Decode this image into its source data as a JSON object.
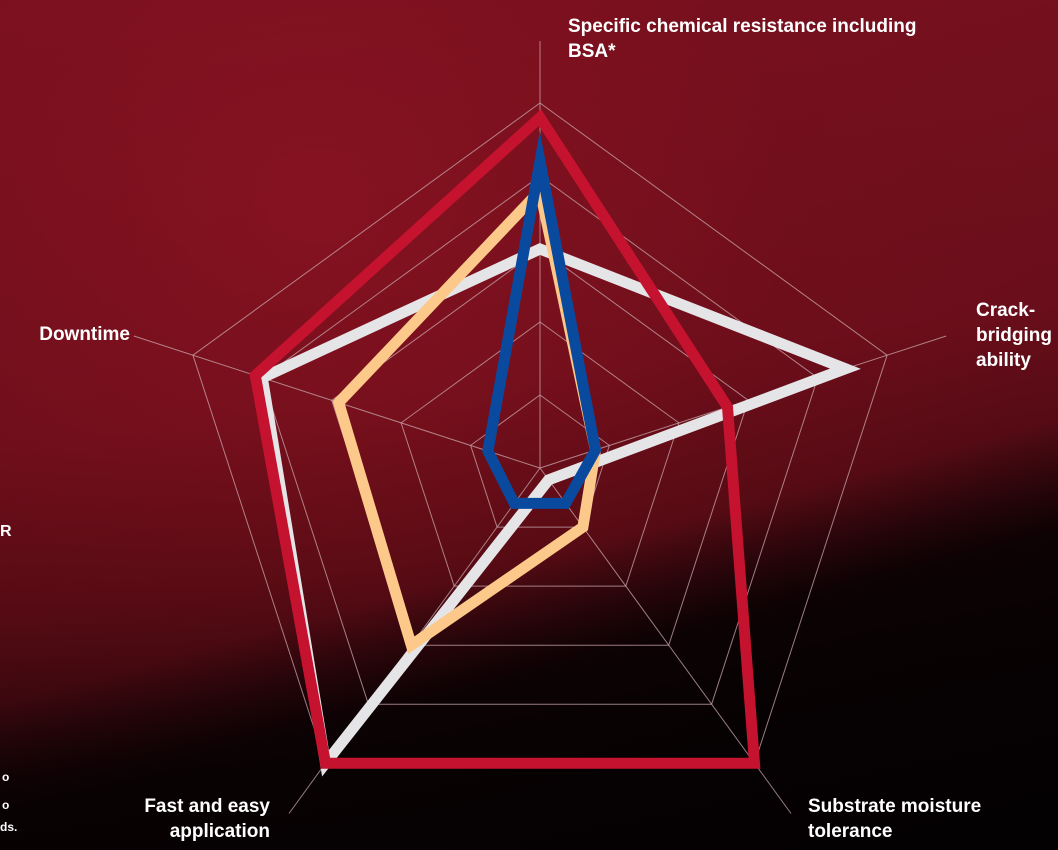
{
  "chart_data": {
    "type": "radar",
    "axes": [
      "Specific chemical resistance including BSA*",
      "Crack-\nbridging\nability",
      "Substrate moisture tolerance",
      "Fast and easy application",
      "Downtime"
    ],
    "rmax": 5,
    "rings": 5,
    "grid": true,
    "series": [
      {
        "color": "#e5e5e8",
        "values": [
          3.0,
          4.4,
          0.2,
          5.0,
          4.0
        ]
      },
      {
        "color": "#fcc98a",
        "values": [
          3.8,
          0.8,
          1.0,
          3.0,
          2.9
        ]
      },
      {
        "color": "#c4122f",
        "values": [
          4.8,
          2.7,
          5.0,
          5.0,
          4.1
        ]
      },
      {
        "color": "#0a4a9e",
        "values": [
          4.2,
          0.8,
          0.6,
          0.6,
          0.75
        ]
      }
    ]
  },
  "left_text": {
    "line1": "R",
    "line2": "o",
    "line3": "o",
    "line4": "ds."
  },
  "colors": {
    "background": "#5a0c15",
    "grid": "#c9a7ad",
    "text": "#ffffff"
  }
}
